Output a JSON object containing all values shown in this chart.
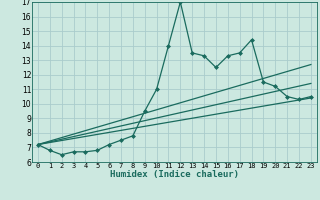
{
  "xlabel": "Humidex (Indice chaleur)",
  "xlim": [
    -0.5,
    23.5
  ],
  "ylim": [
    6,
    17
  ],
  "yticks": [
    6,
    7,
    8,
    9,
    10,
    11,
    12,
    13,
    14,
    15,
    16,
    17
  ],
  "xticks": [
    0,
    1,
    2,
    3,
    4,
    5,
    6,
    7,
    8,
    9,
    10,
    11,
    12,
    13,
    14,
    15,
    16,
    17,
    18,
    19,
    20,
    21,
    22,
    23
  ],
  "bg_color": "#cce8e0",
  "grid_color": "#aacccc",
  "line_color": "#1a6b5e",
  "series": [
    {
      "x": [
        0,
        1,
        2,
        3,
        4,
        5,
        6,
        7,
        8,
        9,
        10,
        11,
        12,
        13,
        14,
        15,
        16,
        17,
        18,
        19,
        20,
        21,
        22,
        23
      ],
      "y": [
        7.2,
        6.8,
        6.5,
        6.7,
        6.7,
        6.8,
        7.2,
        7.5,
        7.8,
        9.5,
        11.0,
        14.0,
        17.0,
        13.5,
        13.3,
        12.5,
        13.3,
        13.5,
        14.4,
        11.5,
        11.2,
        10.5,
        10.3,
        10.5
      ],
      "marker": "D",
      "markersize": 2.0
    },
    {
      "x": [
        0,
        23
      ],
      "y": [
        7.2,
        10.4
      ],
      "marker": null,
      "markersize": 0
    },
    {
      "x": [
        0,
        23
      ],
      "y": [
        7.2,
        11.4
      ],
      "marker": null,
      "markersize": 0
    },
    {
      "x": [
        0,
        23
      ],
      "y": [
        7.2,
        12.7
      ],
      "marker": null,
      "markersize": 0
    }
  ],
  "xticklabels": [
    "0",
    "1",
    "2",
    "3",
    "4",
    "5",
    "6",
    "7",
    "8",
    "9",
    "10",
    "11",
    "12",
    "13",
    "14",
    "15",
    "16",
    "17",
    "18",
    "19",
    "20",
    "21",
    "22",
    "23"
  ],
  "yticklabels": [
    "6",
    "7",
    "8",
    "9",
    "10",
    "11",
    "12",
    "13",
    "14",
    "15",
    "16",
    "17"
  ],
  "xlabel_fontsize": 6.5,
  "tick_fontsize": 5.0,
  "linewidth": 0.9
}
